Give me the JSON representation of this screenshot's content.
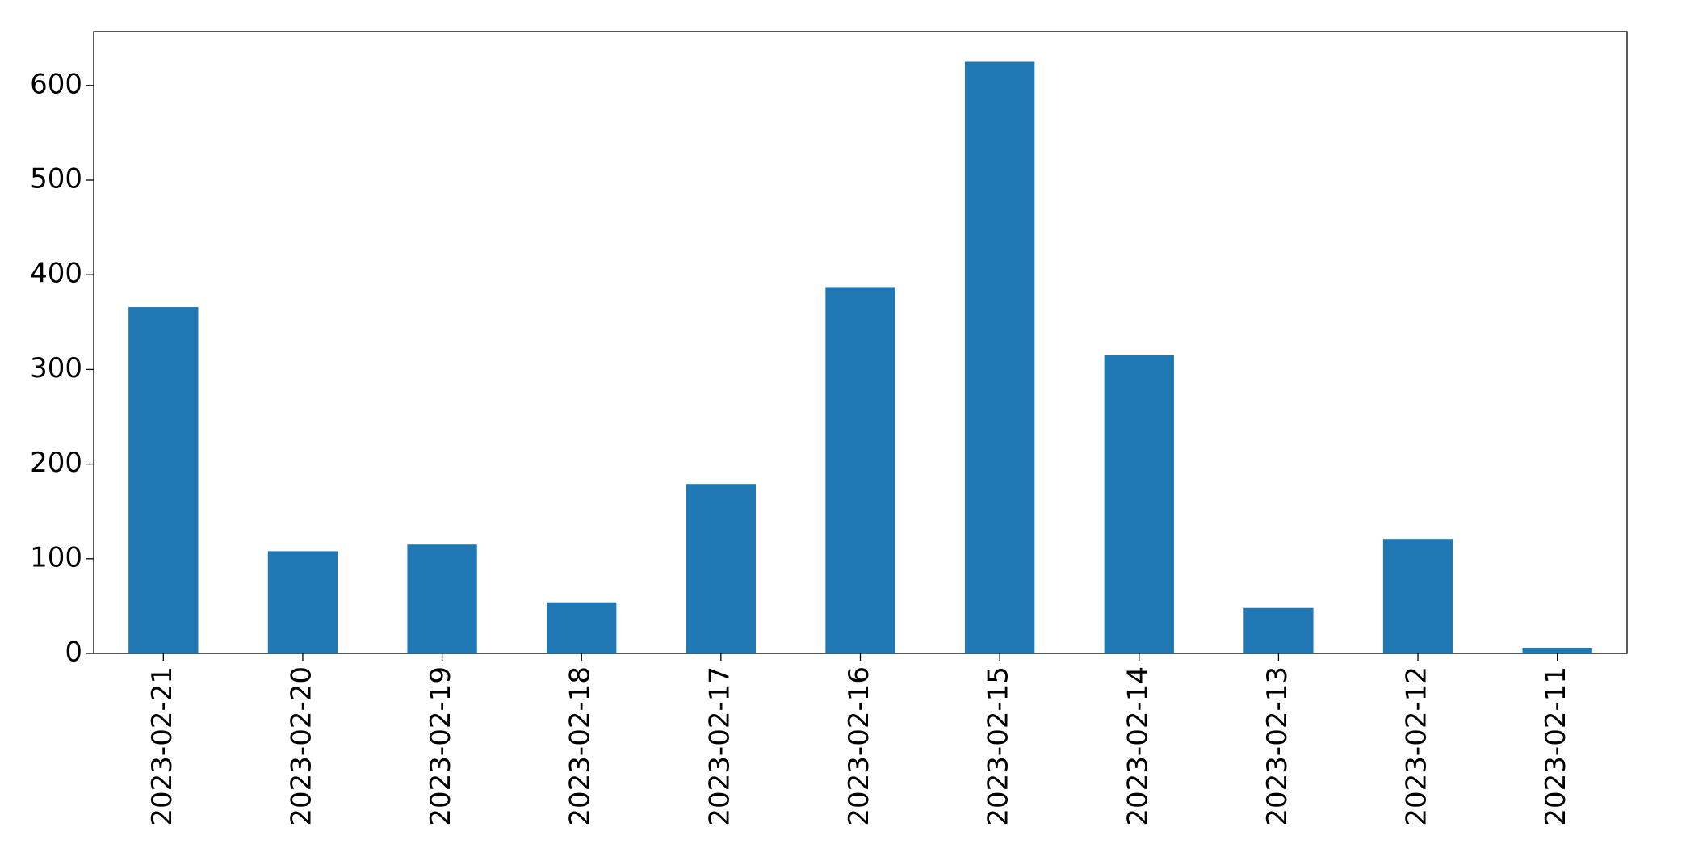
{
  "chart_data": {
    "type": "bar",
    "categories": [
      "2023-02-21",
      "2023-02-20",
      "2023-02-19",
      "2023-02-18",
      "2023-02-17",
      "2023-02-16",
      "2023-02-15",
      "2023-02-14",
      "2023-02-13",
      "2023-02-12",
      "2023-02-11"
    ],
    "values": [
      366,
      108,
      115,
      54,
      179,
      387,
      625,
      315,
      48,
      121,
      6
    ],
    "color": "#1f77b4",
    "ylim": [
      0,
      657
    ],
    "yticks": [
      0,
      100,
      200,
      300,
      400,
      500,
      600
    ],
    "grid": false
  }
}
